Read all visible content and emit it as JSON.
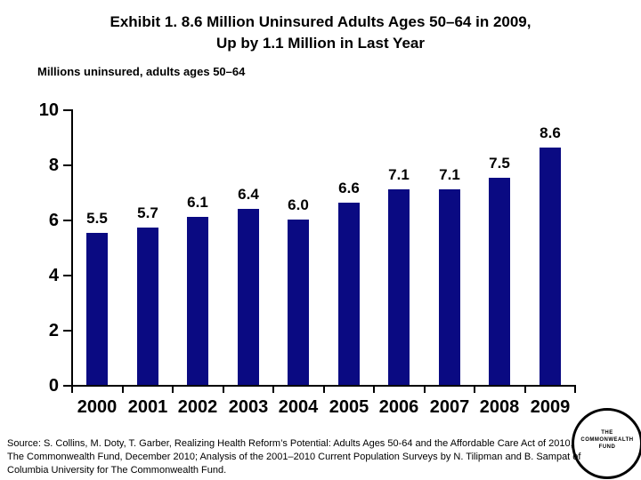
{
  "slide": {
    "title_line1": "Exhibit 1. 8.6 Million Uninsured Adults Ages 50–64 in 2009,",
    "title_line2": "Up by 1.1 Million in Last Year",
    "subtitle": "Millions uninsured, adults ages 50–64",
    "source_lines": [
      "Source: S. Collins, M. Doty, T. Garber, Realizing Health Reform’s Potential: Adults Ages 50-64 and the Affordable Care Act of 2010,",
      "The Commonwealth Fund, December 2010; Analysis of the 2001–2010 Current Population Surveys by N. Tilipman and B. Sampat of",
      "Columbia University for The Commonwealth Fund."
    ],
    "logo": {
      "line1": "THE",
      "line2": "COMMONWEALTH",
      "line3": "FUND"
    }
  },
  "chart_data": {
    "type": "bar",
    "title": "Exhibit 1. 8.6 Million Uninsured Adults Ages 50–64 in 2009, Up by 1.1 Million in Last Year",
    "subtitle": "Millions uninsured, adults ages 50–64",
    "categories": [
      "2000",
      "2001",
      "2002",
      "2003",
      "2004",
      "2005",
      "2006",
      "2007",
      "2008",
      "2009"
    ],
    "values": [
      5.5,
      5.7,
      6.1,
      6.4,
      6.0,
      6.6,
      7.1,
      7.1,
      7.5,
      8.6
    ],
    "data_labels": [
      "5.5",
      "5.7",
      "6.1",
      "6.4",
      "6.0",
      "6.6",
      "7.1",
      "7.1",
      "7.5",
      "8.6"
    ],
    "xlabel": "",
    "ylabel": "",
    "ylim": [
      0,
      10
    ],
    "yticks": [
      0,
      2,
      4,
      6,
      8,
      10
    ],
    "ytick_labels": [
      "0",
      "2",
      "4",
      "6",
      "8",
      "10"
    ],
    "grid": false,
    "legend": "none",
    "bar_color": "#0A0A82",
    "axis_color": "#000000",
    "label_color": "#000000"
  }
}
